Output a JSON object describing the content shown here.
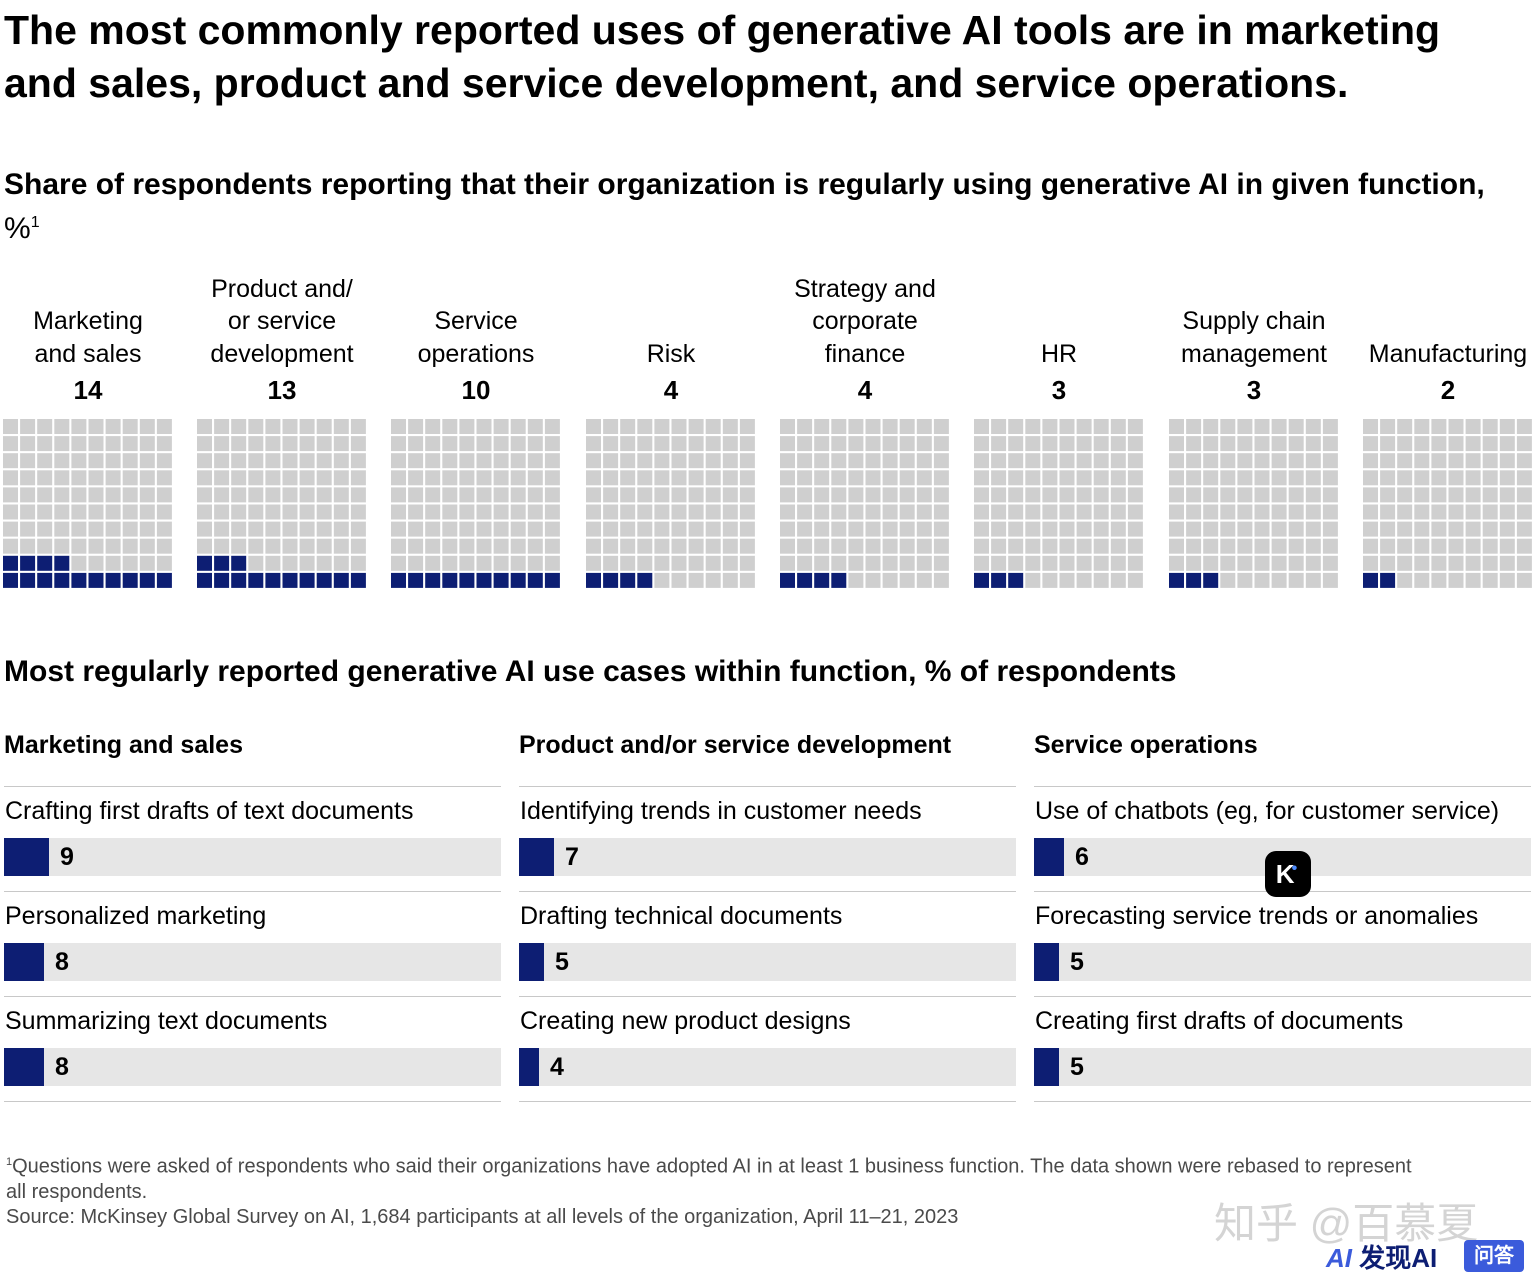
{
  "headline": "The most commonly reported uses of generative AI tools are in marketing and sales, product and service development, and service operations.",
  "subtitle": {
    "main": "Share of respondents reporting that their organization is regularly using generative AI in given function,",
    "unit": "%",
    "footnote_mark": "1"
  },
  "chart_data": [
    {
      "type": "waffle",
      "title": "Share of respondents reporting that their organization is regularly using generative AI in given function, %",
      "grid": [
        10,
        10
      ],
      "categories": [
        "Marketing and sales",
        "Product and/ or service development",
        "Service operations",
        "Risk",
        "Strategy and corporate finance",
        "HR",
        "Supply chain management",
        "Manufacturing"
      ],
      "values": [
        14,
        13,
        10,
        4,
        4,
        3,
        3,
        2
      ],
      "colors": {
        "filled": "#0d1e73",
        "empty": "#cfcfcf"
      }
    },
    {
      "type": "bar",
      "title": "Most regularly reported generative AI use cases within function, % of respondents",
      "xlim": [
        0,
        100
      ],
      "colors": {
        "fill": "#0d1e73",
        "track": "#e6e6e6"
      },
      "groups": [
        {
          "name": "Marketing and sales",
          "categories": [
            "Crafting first drafts of text documents",
            "Personalized marketing",
            "Summarizing text documents"
          ],
          "values": [
            9,
            8,
            8
          ]
        },
        {
          "name": "Product and/or service development",
          "categories": [
            "Identifying trends in customer needs",
            "Drafting technical documents",
            "Creating new product designs"
          ],
          "values": [
            7,
            5,
            4
          ]
        },
        {
          "name": "Service operations",
          "categories": [
            "Use of chatbots (eg, for customer service)",
            "Forecasting service trends or anomalies",
            "Creating first drafts of documents"
          ],
          "values": [
            6,
            5,
            5
          ]
        }
      ]
    }
  ],
  "functions": [
    {
      "label_lines": [
        "Marketing",
        "and sales"
      ],
      "value": "14"
    },
    {
      "label_lines": [
        "Product and/",
        "or service",
        "development"
      ],
      "value": "13"
    },
    {
      "label_lines": [
        "Service",
        "operations"
      ],
      "value": "10"
    },
    {
      "label_lines": [
        "Risk"
      ],
      "value": "4"
    },
    {
      "label_lines": [
        "Strategy and",
        "corporate",
        "finance"
      ],
      "value": "4"
    },
    {
      "label_lines": [
        "HR"
      ],
      "value": "3"
    },
    {
      "label_lines": [
        "Supply chain",
        "management"
      ],
      "value": "3"
    },
    {
      "label_lines": [
        "Manufacturing"
      ],
      "value": "2"
    }
  ],
  "section2": {
    "title_bold": "Most regularly reported generative AI use cases within function,",
    "title_rest": "% of respondents"
  },
  "use_case_columns": [
    {
      "title": "Marketing and sales",
      "rows": [
        {
          "label": "Crafting first drafts of text documents",
          "value": "9"
        },
        {
          "label": "Personalized marketing",
          "value": "8"
        },
        {
          "label": "Summarizing text documents",
          "value": "8"
        }
      ]
    },
    {
      "title": "Product and/or service development",
      "rows": [
        {
          "label": "Identifying trends in customer needs",
          "value": "7"
        },
        {
          "label": "Drafting technical documents",
          "value": "5"
        },
        {
          "label": "Creating new product designs",
          "value": "4"
        }
      ]
    },
    {
      "title": "Service operations",
      "rows": [
        {
          "label": "Use of chatbots (eg, for customer service)",
          "value": "6"
        },
        {
          "label": "Forecasting service trends or anomalies",
          "value": "5"
        },
        {
          "label": "Creating first drafts of documents",
          "value": "5"
        }
      ]
    }
  ],
  "footnote": {
    "mark": "1",
    "text": "Questions were asked of respondents who said their organizations have adopted AI in at least 1 business function. The data shown were rebased to represent all respondents.",
    "source": "Source: McKinsey Global Survey on AI, 1,684 participants at all levels of the organization, April 11–21, 2023"
  },
  "badge": {
    "letter": "K"
  },
  "watermarks": {
    "zhihu": "知乎 @百慕夏",
    "brand_ai": "AI",
    "brand_name": "发现AI",
    "brand_tag": "问答"
  }
}
